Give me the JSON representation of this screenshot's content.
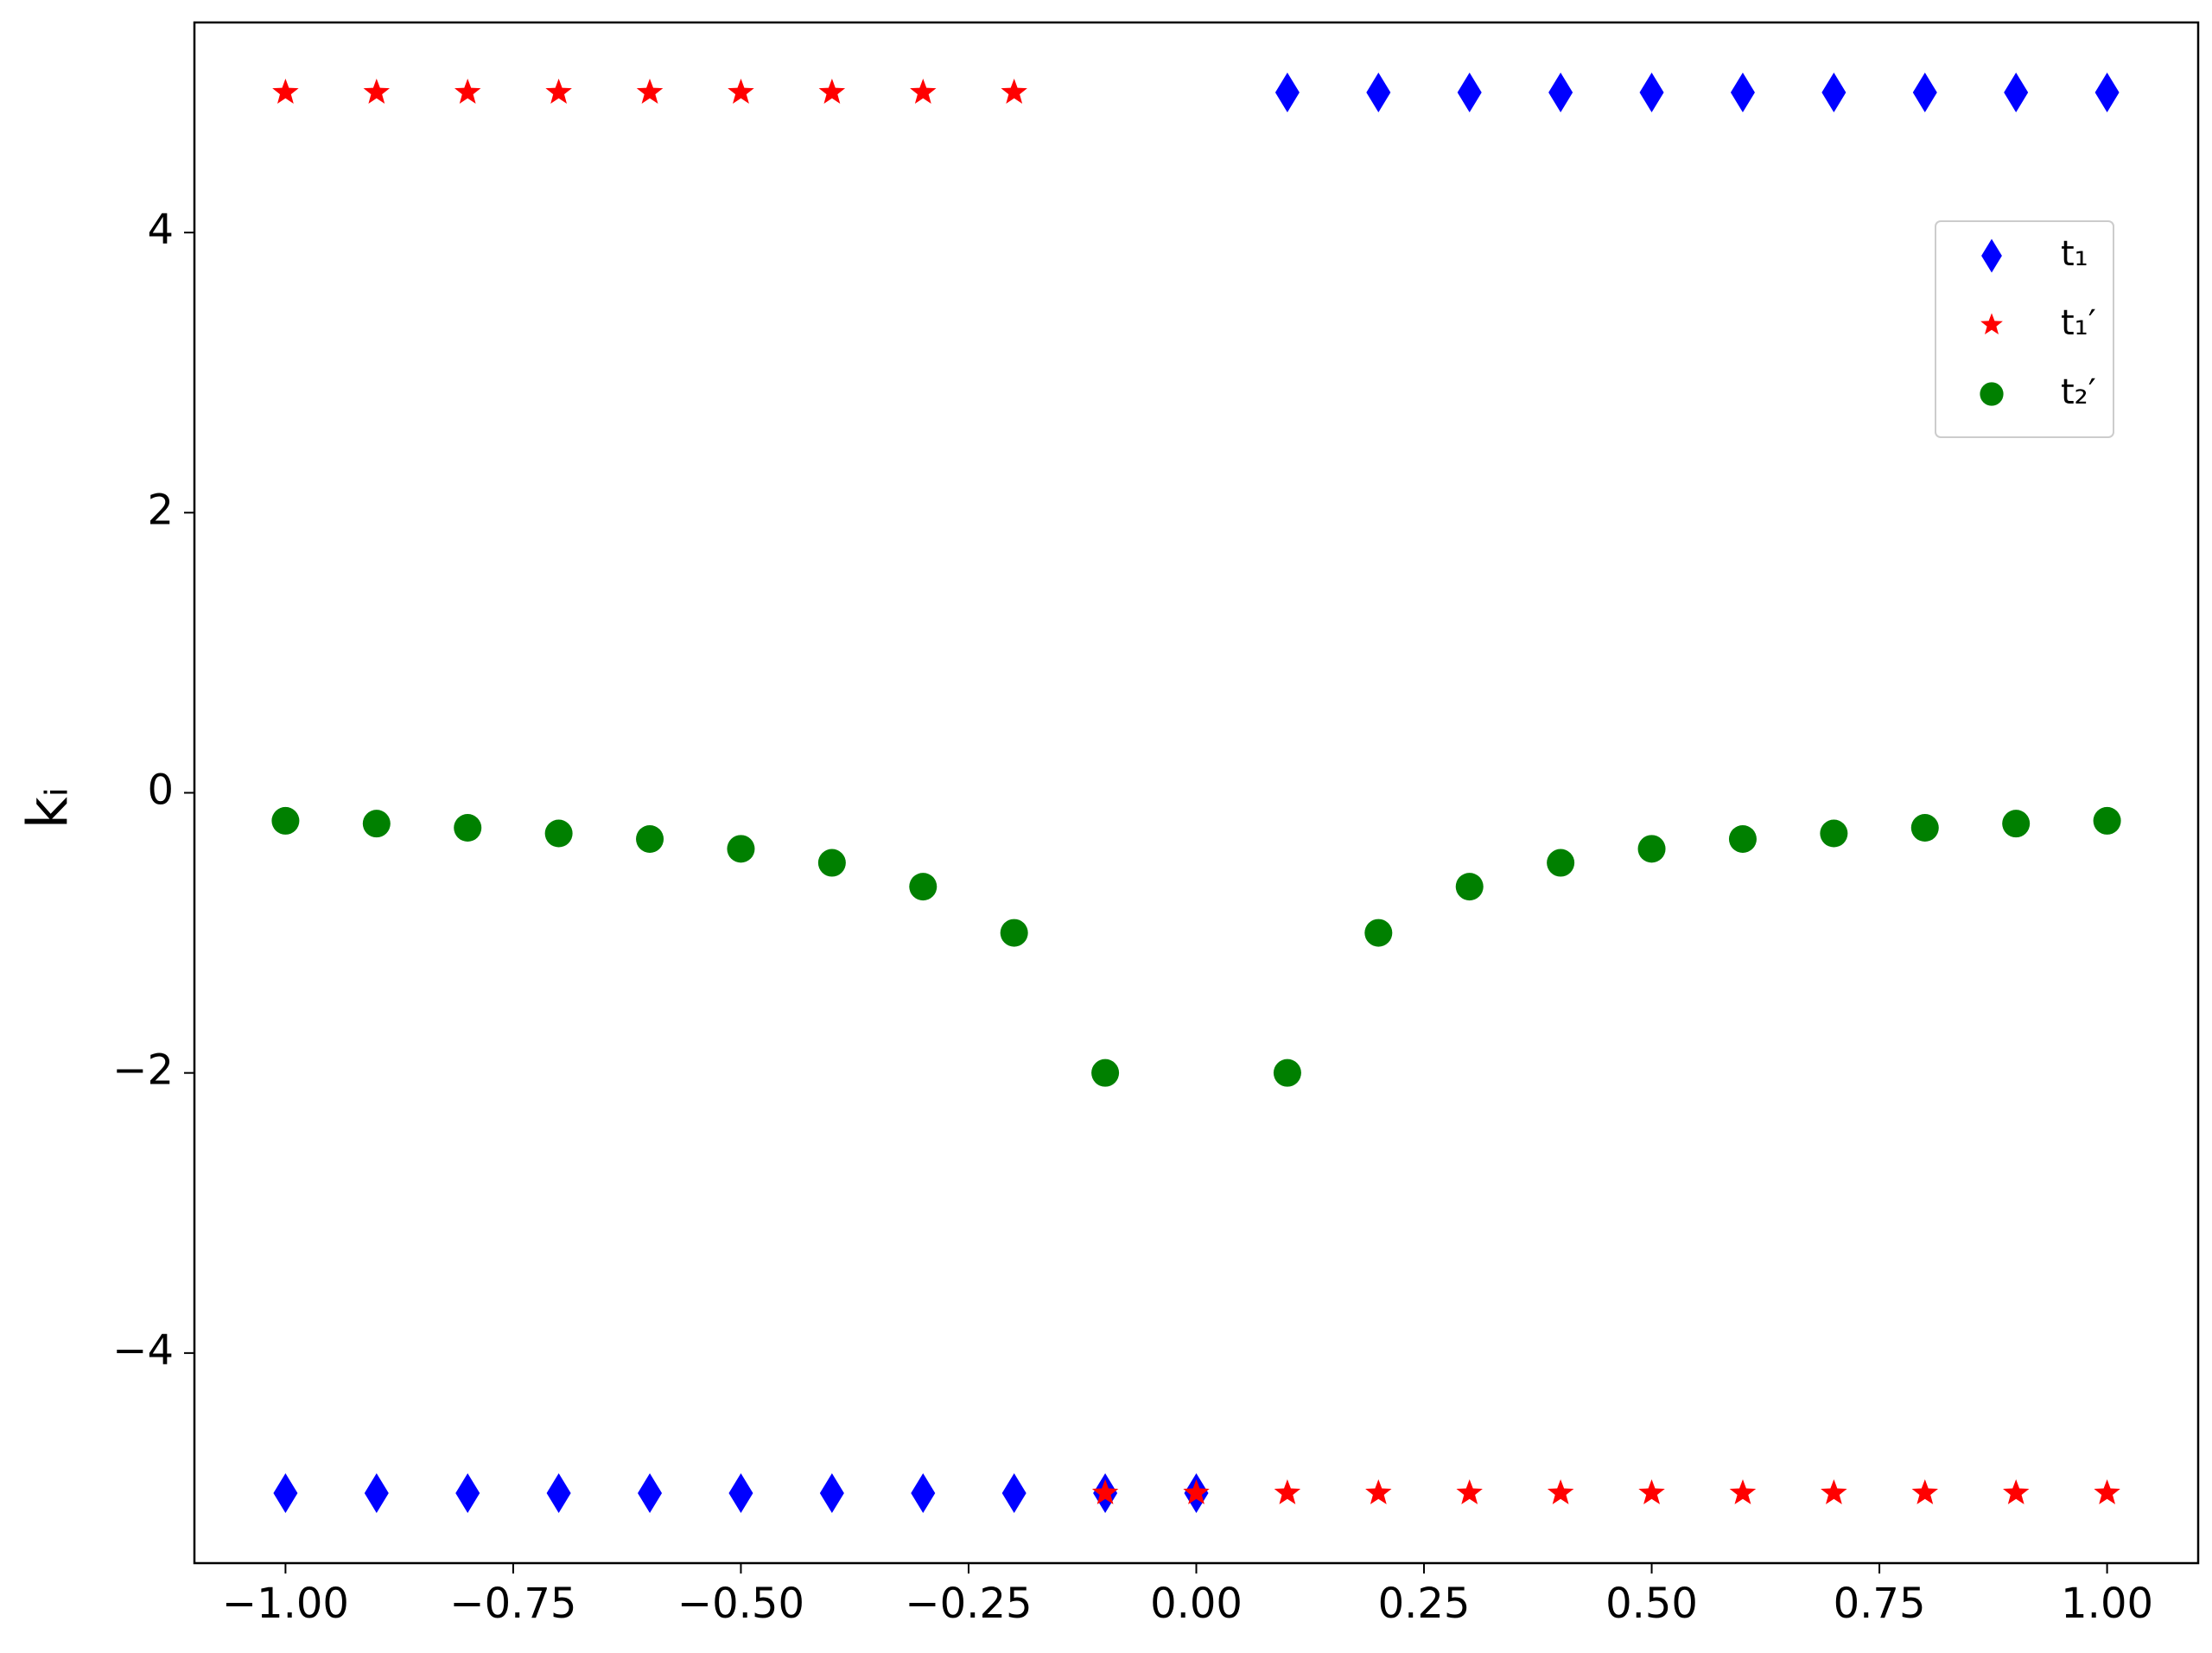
{
  "chart_data": {
    "type": "scatter",
    "ylabel": "kᵢ",
    "x": [
      -1,
      -0.9,
      -0.8,
      -0.7,
      -0.6,
      -0.5,
      -0.4,
      -0.3,
      -0.2,
      -0.1,
      0,
      0.1,
      0.2,
      0.3,
      0.4,
      0.5,
      0.6,
      0.7,
      0.8,
      0.9,
      1
    ],
    "series": [
      {
        "name": "t₁",
        "color": "#0000ff",
        "marker": "diamond",
        "values": [
          -5,
          -5,
          -5,
          -5,
          -5,
          -5,
          -5,
          -5,
          -5,
          -5,
          -5,
          5,
          5,
          5,
          5,
          5,
          5,
          5,
          5,
          5,
          5
        ]
      },
      {
        "name": "t₁′",
        "color": "#ff0000",
        "marker": "star",
        "values": [
          5,
          5,
          5,
          5,
          5,
          5,
          5,
          5,
          5,
          -5,
          -5,
          -5,
          -5,
          -5,
          -5,
          -5,
          -5,
          -5,
          -5,
          -5,
          -5
        ]
      },
      {
        "name": "t₂′",
        "color": "#008000",
        "marker": "circle",
        "values": [
          -0.2,
          -0.22,
          -0.25,
          -0.29,
          -0.33,
          -0.4,
          -0.5,
          -0.67,
          -1,
          -2,
          null,
          -2,
          -1,
          -0.67,
          -0.5,
          -0.4,
          -0.33,
          -0.29,
          -0.25,
          -0.22,
          -0.2
        ]
      }
    ],
    "xlim": [
      -1.1,
      1.1
    ],
    "ylim": [
      -5.5,
      5.5
    ],
    "xticks": [
      {
        "value": -1,
        "label": "−1.00"
      },
      {
        "value": -0.75,
        "label": "−0.75"
      },
      {
        "value": -0.5,
        "label": "−0.50"
      },
      {
        "value": -0.25,
        "label": "−0.25"
      },
      {
        "value": 0,
        "label": "0.00"
      },
      {
        "value": 0.25,
        "label": "0.25"
      },
      {
        "value": 0.5,
        "label": "0.50"
      },
      {
        "value": 0.75,
        "label": "0.75"
      },
      {
        "value": 1,
        "label": "1.00"
      }
    ],
    "yticks": [
      {
        "value": -4,
        "label": "−4"
      },
      {
        "value": -2,
        "label": "−2"
      },
      0,
      2,
      4
    ],
    "legend": "upper right",
    "grid": false
  }
}
